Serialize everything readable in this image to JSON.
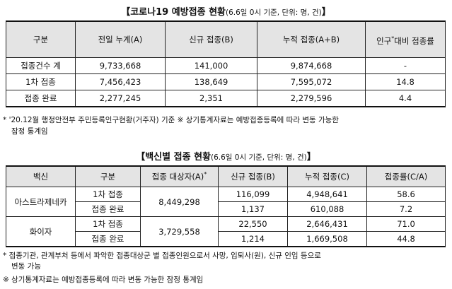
{
  "table1": {
    "title_main": "【코로나19 예방접종 현황",
    "title_sub": "(6.6일 0시 기준, 단위: 명, 건)",
    "title_close": "】",
    "headers": [
      "구분",
      "전일 누계(A)",
      "신규 접종(B)",
      "누적 접종(A+B)",
      "인구",
      "*",
      "대비 접종률"
    ],
    "rows": [
      [
        "접종건수 계",
        "9,733,668",
        "141,000",
        "9,874,668",
        "-"
      ],
      [
        "1차 접종",
        "7,456,423",
        "138,649",
        "7,595,072",
        "14.8"
      ],
      [
        "접종 완료",
        "2,277,245",
        "2,351",
        "2,279,596",
        "4.4"
      ]
    ],
    "note_line1": "* '20.12월 행정안전부 주민등록인구현황(거주자) 기준   ※ 상기통계자료는 예방접종등록에 따라 변동 가능한",
    "note_line2": "잠정 통계임"
  },
  "table2": {
    "title_main": "【백신별 접종 현황",
    "title_sub": "(6.6일 0시 기준, 단위: 명, 건)",
    "title_close": "】",
    "headers": [
      "백신",
      "구분",
      "접종 대상자(A)",
      "*",
      "신규 접종(B)",
      "누적 접종(C)",
      "접종률(C/A)"
    ],
    "vaccines": [
      {
        "name": "아스트라제네카",
        "target": "8,449,298",
        "rows": [
          [
            "1차 접종",
            "116,099",
            "4,948,641",
            "58.6"
          ],
          [
            "접종 완료",
            "1,137",
            "610,088",
            "7.2"
          ]
        ]
      },
      {
        "name": "화이자",
        "target": "3,729,558",
        "rows": [
          [
            "1차 접종",
            "22,550",
            "2,646,431",
            "71.0"
          ],
          [
            "접종 완료",
            "1,214",
            "1,669,508",
            "44.8"
          ]
        ]
      }
    ],
    "note_line1": "* 접종기관, 관계부처 등에서 파악한 접종대상군 별 접종인원으로서 사망, 입퇴사(원), 신규 인입 등으로",
    "note_line2": "변동 가능",
    "note_line3": "※ 상기통계자료는 예방접종등록에 따라 변동 가능한 잠정 통계임"
  }
}
